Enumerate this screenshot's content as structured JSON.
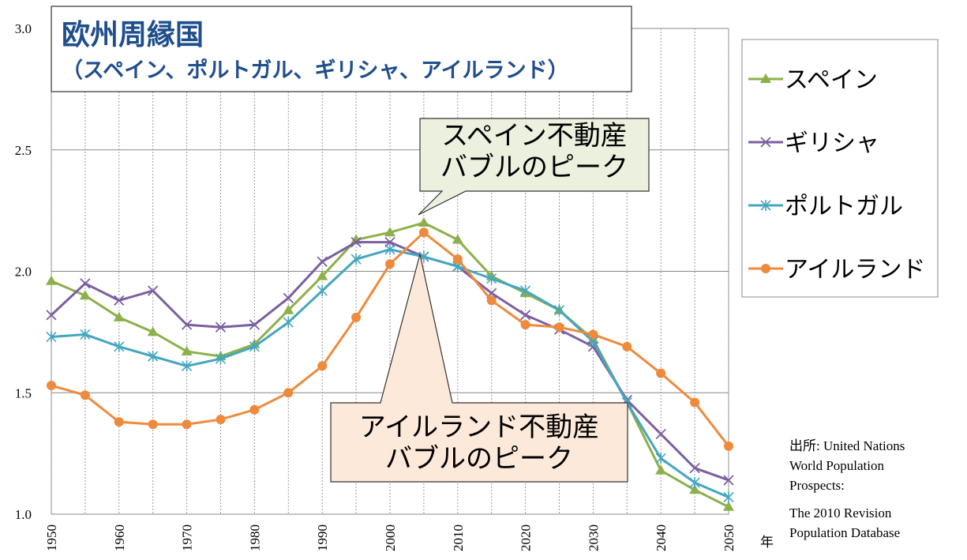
{
  "chart_data": {
    "type": "line",
    "title": "欧州周縁国",
    "subtitle": "（スペイン、ポルトガル、ギリシャ、アイルランド）",
    "x": [
      1950,
      1955,
      1960,
      1965,
      1970,
      1975,
      1980,
      1985,
      1990,
      1995,
      2000,
      2005,
      2010,
      2015,
      2020,
      2025,
      2030,
      2035,
      2040,
      2045,
      2050
    ],
    "xlim": [
      1950,
      2050
    ],
    "xticks": [
      1950,
      1960,
      1970,
      1980,
      1990,
      2000,
      2010,
      2020,
      2030,
      2040,
      2050
    ],
    "xlabel": "年",
    "ylim": [
      1,
      3
    ],
    "yticks": [
      {
        "value": 1,
        "label": "1.0"
      },
      {
        "value": 1.5,
        "label": "1.5"
      },
      {
        "value": 2,
        "label": "2.0"
      },
      {
        "value": 2.5,
        "label": "2.5"
      },
      {
        "value": 3,
        "label": "3.0"
      }
    ],
    "grid": true,
    "legend": "right",
    "series": [
      {
        "name": "スペイン",
        "color": "#8cb04a",
        "marker": "triangle",
        "values": [
          1.96,
          1.9,
          1.81,
          1.75,
          1.67,
          1.65,
          1.7,
          1.84,
          1.98,
          2.13,
          2.16,
          2.2,
          2.13,
          1.98,
          1.91,
          1.84,
          1.72,
          1.46,
          1.18,
          1.1,
          1.03
        ]
      },
      {
        "name": "ギリシャ",
        "color": "#7b5fa0",
        "marker": "x",
        "values": [
          1.82,
          1.95,
          1.88,
          1.92,
          1.78,
          1.77,
          1.78,
          1.89,
          2.04,
          2.12,
          2.12,
          2.06,
          2.02,
          1.91,
          1.82,
          1.76,
          1.69,
          1.47,
          1.33,
          1.19,
          1.14
        ]
      },
      {
        "name": "ポルトガル",
        "color": "#45a6bf",
        "marker": "asterisk",
        "values": [
          1.73,
          1.74,
          1.69,
          1.65,
          1.61,
          1.64,
          1.69,
          1.79,
          1.92,
          2.05,
          2.09,
          2.06,
          2.02,
          1.97,
          1.92,
          1.84,
          1.71,
          1.46,
          1.23,
          1.13,
          1.07
        ]
      },
      {
        "name": "アイルランド",
        "color": "#ee8a3c",
        "marker": "circle",
        "values": [
          1.53,
          1.49,
          1.38,
          1.37,
          1.37,
          1.39,
          1.43,
          1.5,
          1.61,
          1.81,
          2.03,
          2.16,
          2.05,
          1.88,
          1.78,
          1.77,
          1.74,
          1.69,
          1.58,
          1.46,
          1.28
        ]
      }
    ],
    "annotations": [
      {
        "lines": [
          "スペイン不動産",
          "バブルのピーク"
        ]
      },
      {
        "lines": [
          "アイルランド不動産",
          "バブルのピーク"
        ]
      }
    ],
    "source": [
      "出所: United Nations",
      "World Population",
      "Prospects:",
      "The 2010 Revision",
      "Population Database"
    ]
  }
}
